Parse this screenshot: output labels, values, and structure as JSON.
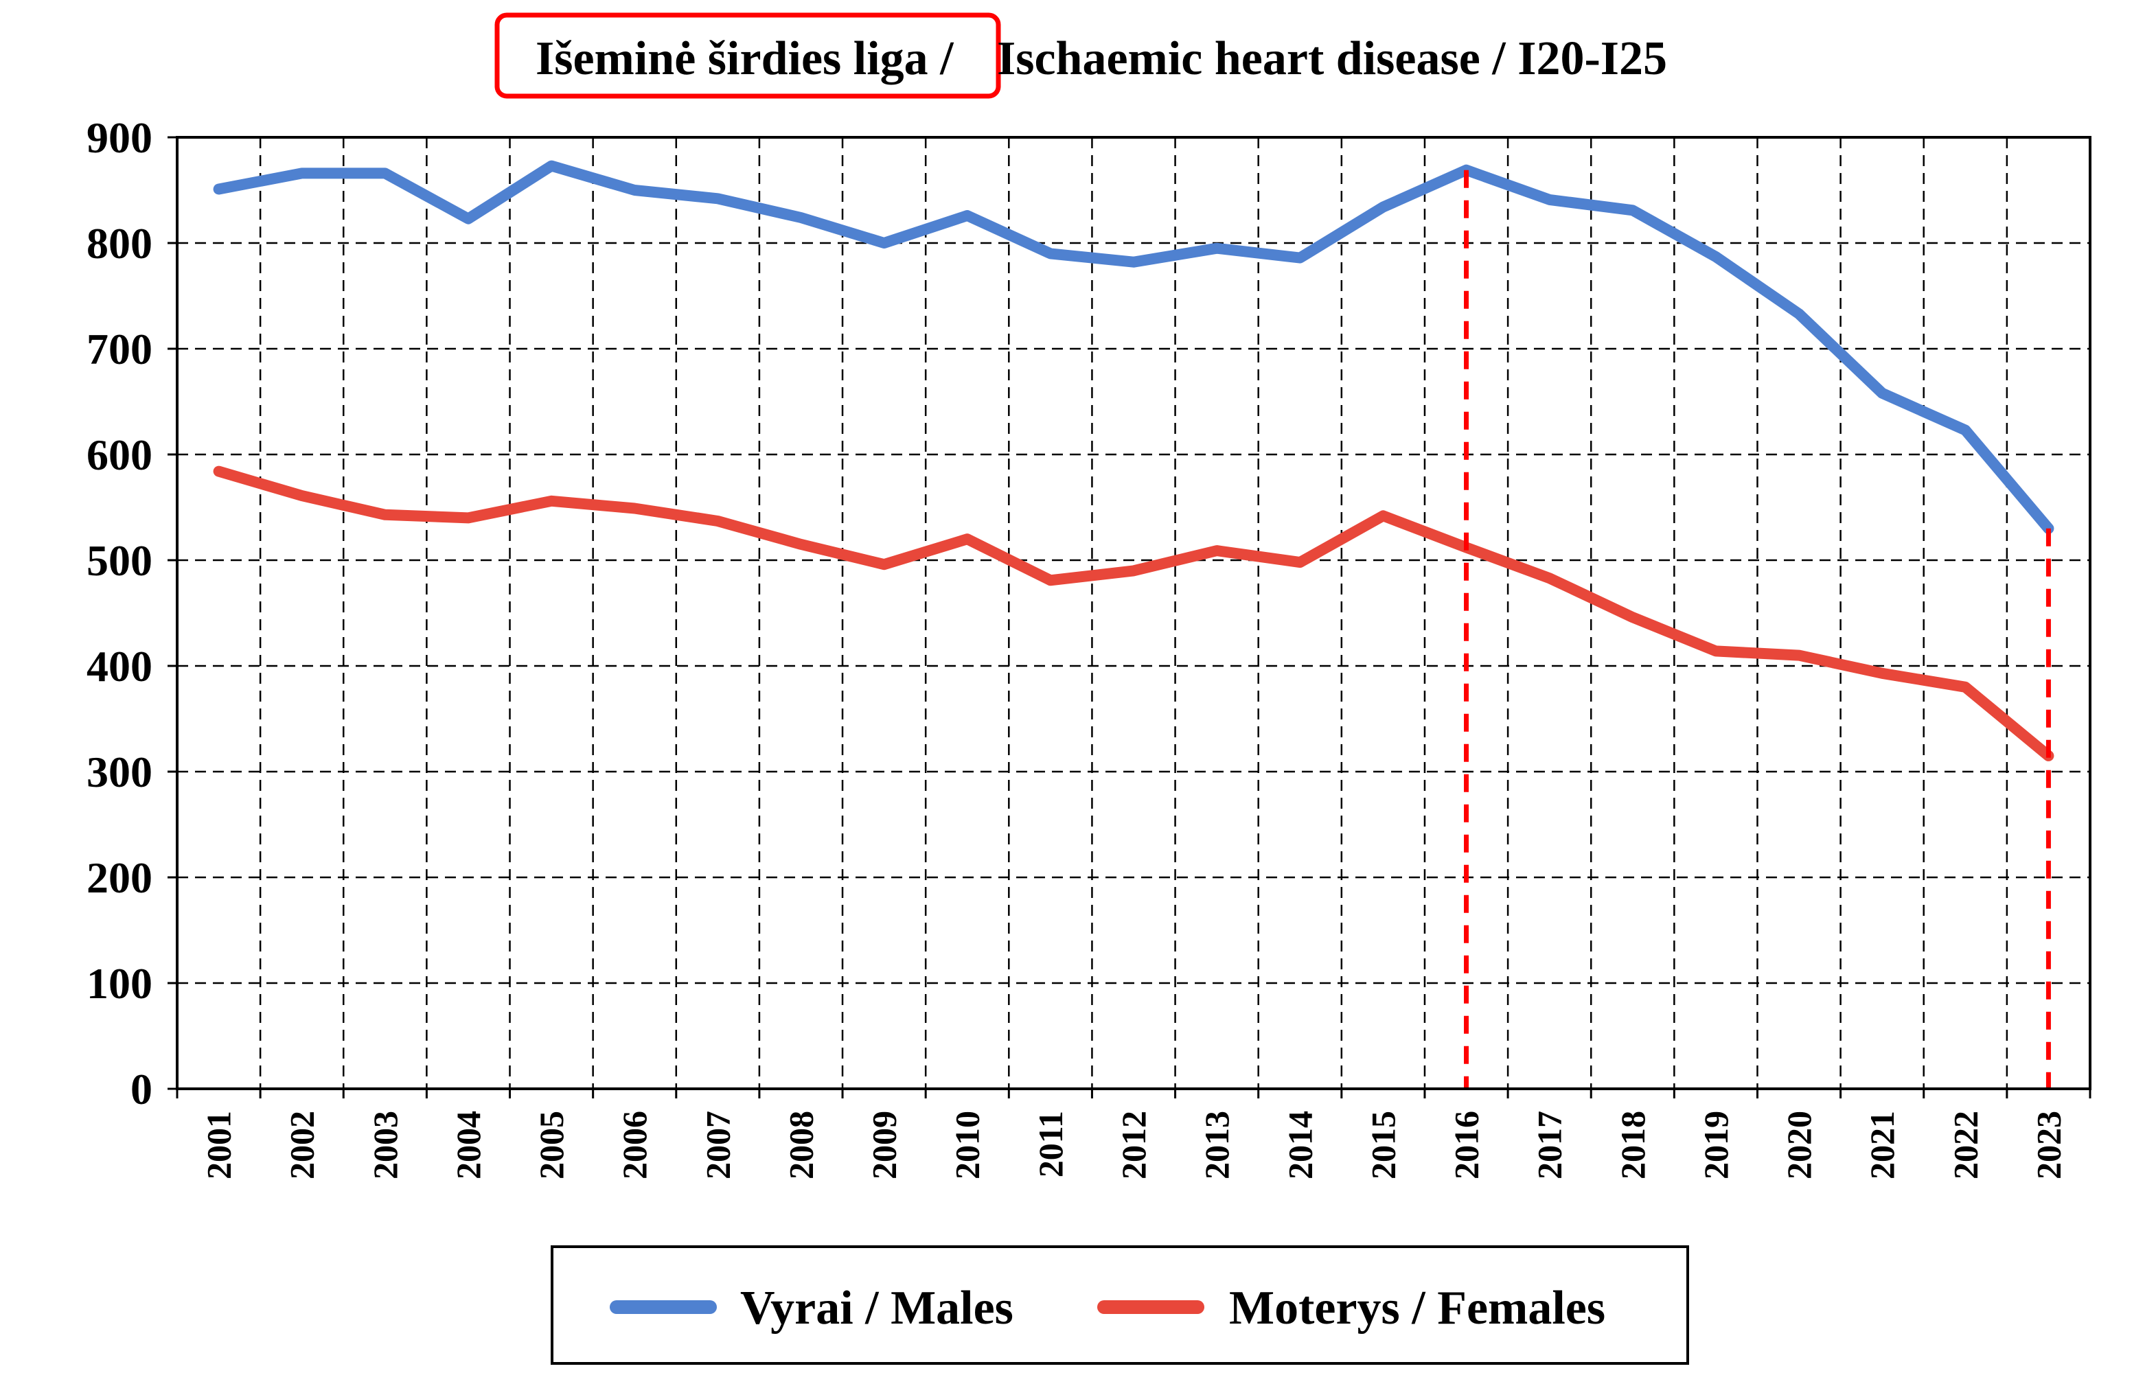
{
  "chart_data": {
    "type": "line",
    "title_part1": "Išeminė širdies liga /",
    "title_part2": "Ischaemic heart disease / I20-I25",
    "x": [
      "2001",
      "2002",
      "2003",
      "2004",
      "2005",
      "2006",
      "2007",
      "2008",
      "2009",
      "2010",
      "2011",
      "2012",
      "2013",
      "2014",
      "2015",
      "2016",
      "2017",
      "2018",
      "2019",
      "2020",
      "2021",
      "2022",
      "2023"
    ],
    "ylim": [
      0,
      900
    ],
    "yticks": [
      "0",
      "100",
      "200",
      "300",
      "400",
      "500",
      "600",
      "700",
      "800",
      "900"
    ],
    "grid": true,
    "legend_position": "bottom",
    "series": [
      {
        "name": "Vyrai / Males",
        "color": "#4f81d0",
        "values": [
          851,
          866,
          866,
          823,
          873,
          850,
          842,
          824,
          800,
          826,
          790,
          782,
          795,
          786,
          834,
          869,
          841,
          831,
          787,
          733,
          658,
          623,
          530
        ]
      },
      {
        "name": "Moterys / Females",
        "color": "#e8473a",
        "values": [
          584,
          561,
          543,
          540,
          556,
          549,
          537,
          515,
          496,
          520,
          481,
          490,
          509,
          498,
          542,
          512,
          483,
          446,
          414,
          410,
          393,
          380,
          315
        ]
      }
    ],
    "highlight_years": [
      "2016",
      "2023"
    ],
    "highlight_color": "#ff0000"
  }
}
